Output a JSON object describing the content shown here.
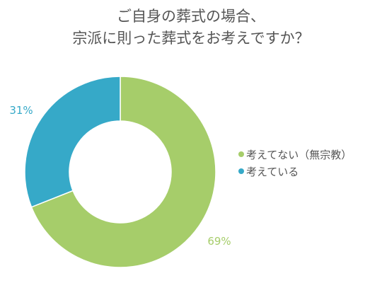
{
  "chart_data": {
    "type": "pie",
    "donut": true,
    "title": "ご自身の葬式の場合、\n宗派に則った葬式をお考えですか？",
    "title_lines": [
      "ご自身の葬式の場合、",
      "宗派に則った葬式をお考えですか？"
    ],
    "slices": [
      {
        "label": "考えてない（無宗教）",
        "value": 69,
        "display": "69%",
        "color": "#a6cd6a"
      },
      {
        "label": "考えている",
        "value": 31,
        "display": "31%",
        "color": "#36a9c8"
      }
    ],
    "legend_position": "right",
    "label_color_slice1": "#a6cd6a",
    "label_color_slice2": "#36a9c8"
  }
}
